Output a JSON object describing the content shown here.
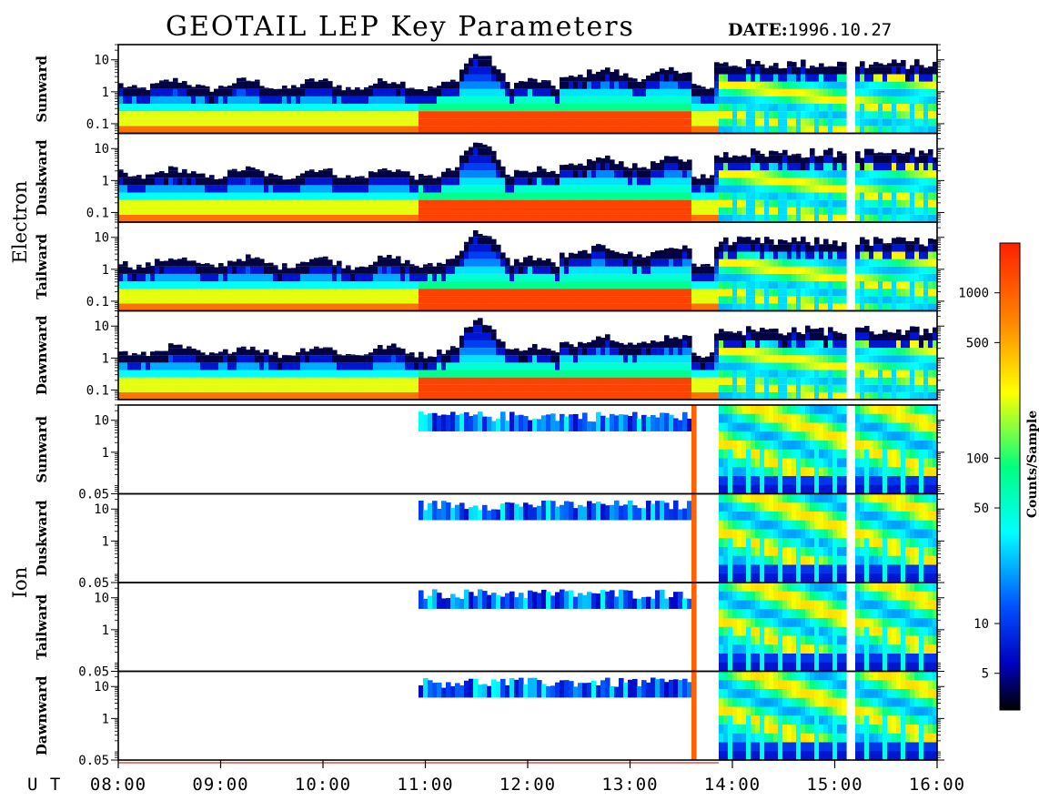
{
  "header": {
    "title": "GEOTAIL LEP Key Parameters",
    "date_label": "DATE:",
    "date_value": "1996.10.27"
  },
  "chart_data": {
    "type": "heatmap",
    "title": "GEOTAIL LEP Key Parameters",
    "date": "1996.10.27",
    "x_label": "U T",
    "x_range": [
      "08:00",
      "16:00"
    ],
    "x_ticks": [
      "08:00",
      "09:00",
      "10:00",
      "11:00",
      "12:00",
      "13:00",
      "14:00",
      "15:00",
      "16:00"
    ],
    "yscale": "log",
    "groups": [
      {
        "name": "Electron",
        "y_ticks": [
          "10",
          "1",
          "0.1"
        ],
        "y_tick_values": [
          10,
          1,
          0.1
        ],
        "ylim": [
          0.05,
          30
        ],
        "panels": [
          {
            "direction": "Sunward"
          },
          {
            "direction": "Duskward"
          },
          {
            "direction": "Tailward"
          },
          {
            "direction": "Dawnward"
          }
        ]
      },
      {
        "name": "Ion",
        "y_ticks": [
          "10",
          "1",
          "0.05"
        ],
        "y_tick_values": [
          10,
          1,
          0.05
        ],
        "ylim": [
          0.05,
          30
        ],
        "panels": [
          {
            "direction": "Sunward"
          },
          {
            "direction": "Duskward"
          },
          {
            "direction": "Tailward"
          },
          {
            "direction": "Dawnward"
          }
        ]
      }
    ],
    "colorbar": {
      "title": "Counts/Sample",
      "scale": "log",
      "range": [
        3,
        2000
      ],
      "ticks": [
        "1000",
        "500",
        "100",
        "50",
        "10",
        "5"
      ],
      "tick_values": [
        1000,
        500,
        100,
        50,
        10,
        5
      ],
      "colors": [
        "#000000",
        "#0000c0",
        "#0050ff",
        "#00ffff",
        "#00ff80",
        "#ffff00",
        "#ff8000",
        "#ff2000"
      ]
    },
    "data_gap": [
      "15:07",
      "15:12"
    ]
  }
}
